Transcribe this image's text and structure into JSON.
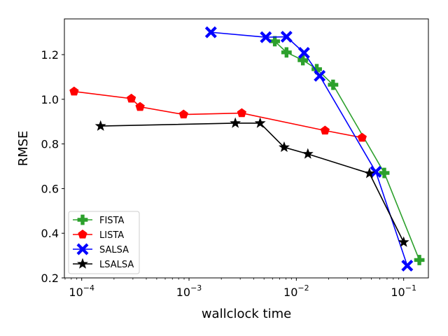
{
  "chart_data": {
    "type": "line",
    "title": "",
    "xlabel": "wallclock time",
    "ylabel": "RMSE",
    "xscale": "log",
    "xlim": [
      6.9e-05,
      0.17
    ],
    "ylim": [
      0.2,
      1.36
    ],
    "x_ticks": [
      {
        "value": 0.0001,
        "base": "10",
        "exp": "−4"
      },
      {
        "value": 0.001,
        "base": "10",
        "exp": "−3"
      },
      {
        "value": 0.01,
        "base": "10",
        "exp": "−2"
      },
      {
        "value": 0.1,
        "base": "10",
        "exp": "−1"
      }
    ],
    "y_ticks": [
      "0.2",
      "0.4",
      "0.6",
      "0.8",
      "1.0",
      "1.2"
    ],
    "grid": false,
    "legend_position": "lower-left",
    "series": [
      {
        "name": "FISTA",
        "color": "#2ca02c",
        "marker": "plus",
        "x": [
          0.0063,
          0.0081,
          0.0115,
          0.0155,
          0.022,
          0.066,
          0.14
        ],
        "y": [
          1.26,
          1.21,
          1.175,
          1.135,
          1.065,
          0.67,
          0.28
        ]
      },
      {
        "name": "LISTA",
        "color": "#ff0000",
        "marker": "pentagon",
        "x": [
          8.5e-05,
          0.00029,
          0.00035,
          0.00089,
          0.0031,
          0.0185,
          0.041
        ],
        "y": [
          1.035,
          1.003,
          0.966,
          0.932,
          0.938,
          0.86,
          0.828
        ]
      },
      {
        "name": "SALSA",
        "color": "#0000ff",
        "marker": "x",
        "x": [
          0.0016,
          0.0052,
          0.0081,
          0.0118,
          0.0165,
          0.055,
          0.108
        ],
        "y": [
          1.3,
          1.278,
          1.28,
          1.208,
          1.105,
          0.675,
          0.255
        ]
      },
      {
        "name": "LSALSA",
        "color": "#000000",
        "marker": "star",
        "x": [
          0.00015,
          0.0027,
          0.0046,
          0.0077,
          0.0128,
          0.048,
          0.1
        ],
        "y": [
          0.88,
          0.893,
          0.893,
          0.785,
          0.755,
          0.668,
          0.36
        ]
      }
    ]
  }
}
